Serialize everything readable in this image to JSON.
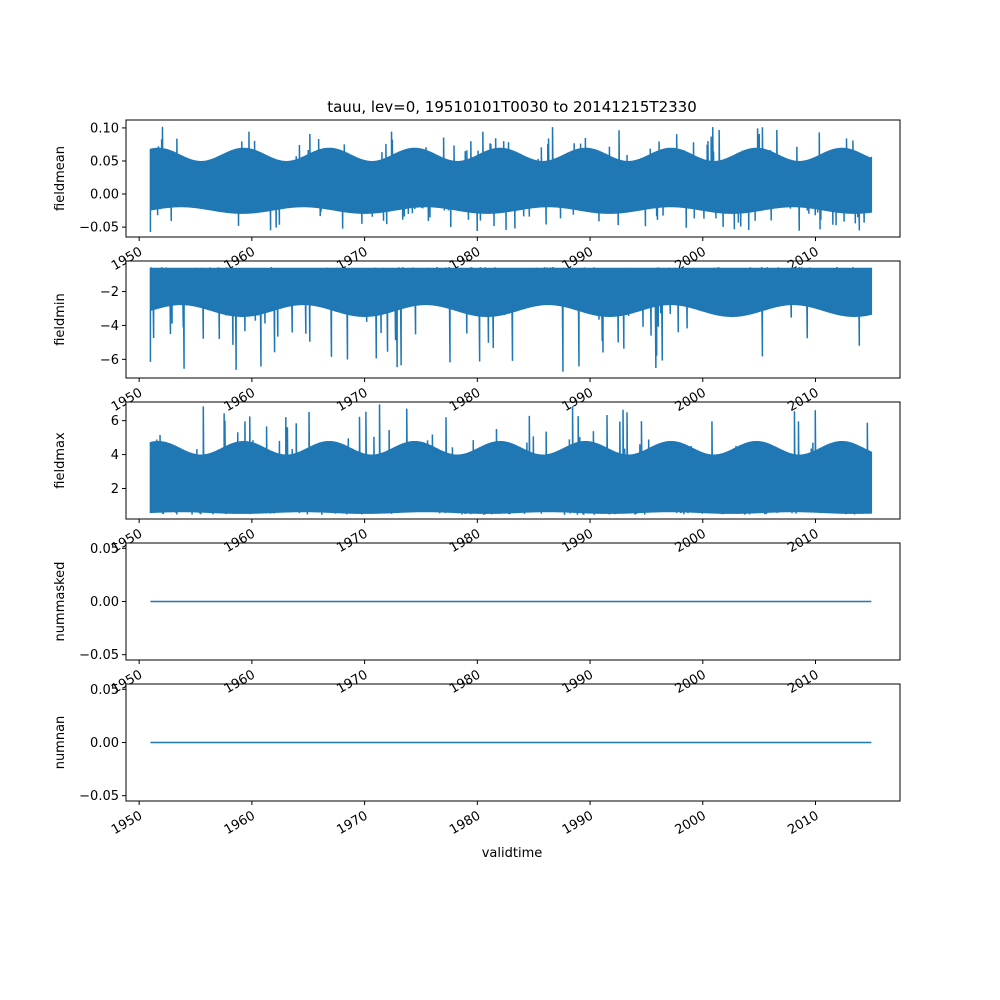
{
  "chart_data": {
    "type": "line",
    "title": "tauu, lev=0, 19510101T0030 to 20141215T2330",
    "xlabel": "validtime",
    "line_color": "#1f77b4",
    "x_range": [
      "1951-01-01",
      "2014-12-15"
    ],
    "xlim": [
      "1948-11-01",
      "2017-07-01"
    ],
    "xtick_labels": [
      "1950",
      "1960",
      "1970",
      "1980",
      "1990",
      "2000",
      "2010"
    ],
    "grid": false,
    "panels": [
      {
        "ylabel": "fieldmean",
        "ylim": [
          -0.065,
          0.112
        ],
        "yticks": [
          -0.05,
          0.0,
          0.05,
          0.1
        ],
        "ytick_labels": [
          "−0.05",
          "0.00",
          "0.05",
          "0.10"
        ],
        "envelope_low": [
          -0.03,
          -0.02
        ],
        "envelope_high": [
          0.05,
          0.07
        ],
        "peak_min": -0.058,
        "peak_max": 0.102
      },
      {
        "ylabel": "fieldmin",
        "ylim": [
          -7.1,
          -0.2
        ],
        "yticks": [
          -6,
          -4,
          -2
        ],
        "ytick_labels": [
          "−6",
          "−4",
          "−2"
        ],
        "envelope_low": [
          -3.5,
          -2.8
        ],
        "envelope_high": [
          -0.6,
          -0.6
        ],
        "peak_min": -6.8,
        "peak_max": -0.55
      },
      {
        "ylabel": "fieldmax",
        "ylim": [
          0.2,
          7.1
        ],
        "yticks": [
          2,
          4,
          6
        ],
        "ytick_labels": [
          "2",
          "4",
          "6"
        ],
        "envelope_low": [
          0.5,
          0.6
        ],
        "envelope_high": [
          4.0,
          4.8
        ],
        "peak_min": 0.45,
        "peak_max": 7.0
      },
      {
        "ylabel": "nummasked",
        "ylim": [
          -0.055,
          0.055
        ],
        "yticks": [
          -0.05,
          0.0,
          0.05
        ],
        "ytick_labels": [
          "−0.05",
          "0.00",
          "0.05"
        ],
        "constant": 0
      },
      {
        "ylabel": "numnan",
        "ylim": [
          -0.055,
          0.055
        ],
        "yticks": [
          -0.05,
          0.0,
          0.05
        ],
        "ytick_labels": [
          "−0.05",
          "0.00",
          "0.05"
        ],
        "constant": 0
      }
    ]
  }
}
